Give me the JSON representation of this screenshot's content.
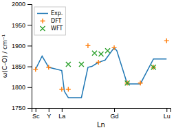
{
  "chart_data": {
    "type": "line",
    "xlabel": "Ln",
    "ylabel": "ω(C–O) / cm⁻¹",
    "xlim": [
      -0.3,
      10.3
    ],
    "xticks": [
      {
        "value": 0,
        "label": "Sc"
      },
      {
        "value": 1,
        "label": "Y"
      },
      {
        "value": 2,
        "label": "La"
      },
      {
        "value": 6,
        "label": "Gd"
      },
      {
        "value": 10,
        "label": "Lu"
      }
    ],
    "ylim": [
      1750,
      2000
    ],
    "yticks": [
      1750,
      1800,
      1850,
      1900,
      1950,
      2000
    ],
    "legend": "upper left",
    "series": [
      {
        "name": "Exp.",
        "type": "line",
        "line_style": "solid",
        "x": [
          0,
          0.5,
          1,
          2,
          2.2,
          2.5,
          3.5,
          4,
          4.3,
          4.7,
          5,
          5.3,
          6,
          6.2,
          7,
          8,
          9,
          10
        ],
        "values": [
          1843,
          1875,
          1848,
          1840,
          1790,
          1775,
          1775,
          1848,
          1850,
          1858,
          1862,
          1865,
          1895,
          1888,
          1808,
          1808,
          1868,
          1868
        ]
      },
      {
        "name": "DFT",
        "type": "scatter",
        "marker": "plus",
        "x": [
          0,
          1,
          2,
          2.5,
          4,
          4.8,
          6,
          7,
          8,
          9,
          10
        ],
        "values": [
          1843,
          1848,
          1795,
          1795,
          1900,
          1860,
          1895,
          1810,
          1810,
          1848,
          1912
        ]
      },
      {
        "name": "WFT",
        "type": "scatter",
        "marker": "x",
        "x": [
          2.5,
          3.5,
          4.5,
          5,
          5.5,
          7,
          9
        ],
        "values": [
          1855,
          1855,
          1882,
          1880,
          1888,
          1810,
          1848
        ]
      }
    ]
  }
}
